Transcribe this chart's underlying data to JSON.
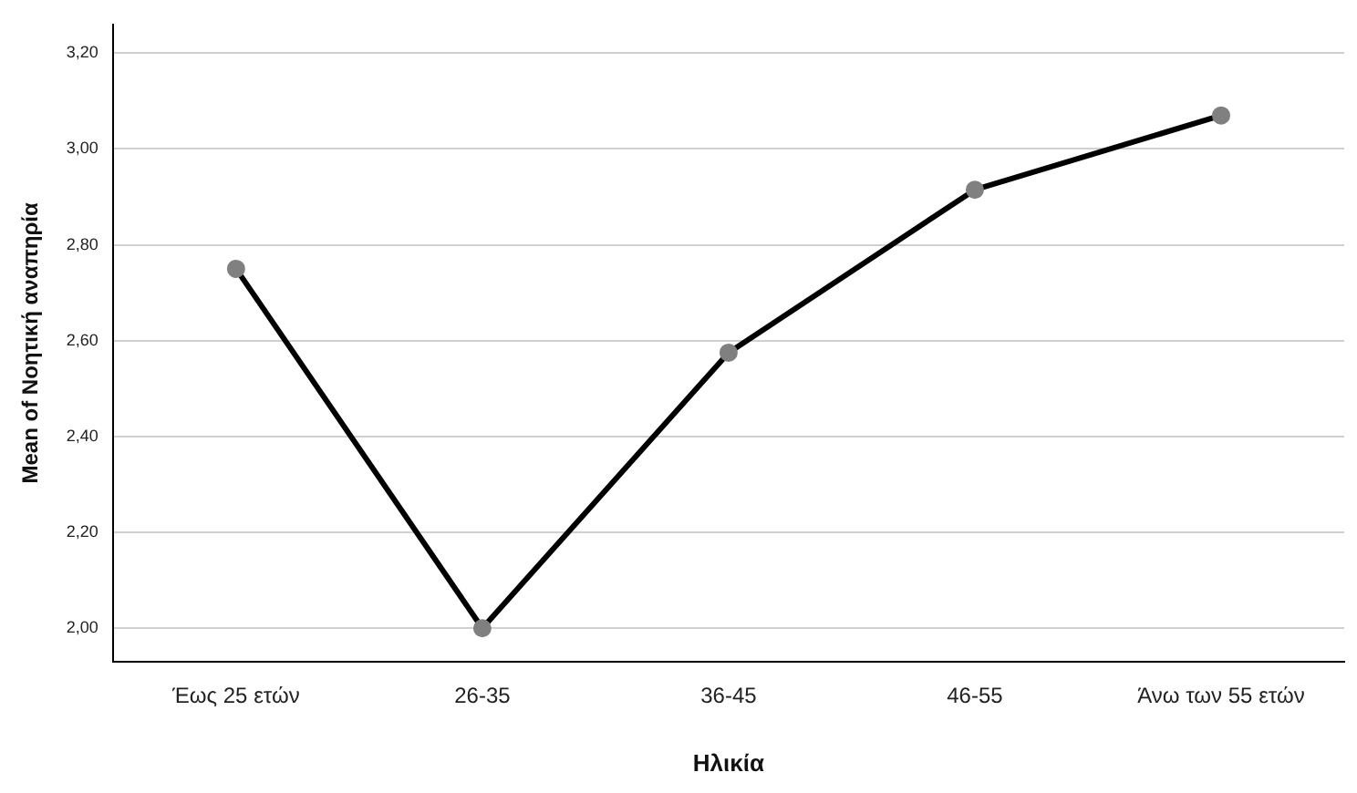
{
  "chart_data": {
    "type": "line",
    "xlabel": "Ηλικία",
    "ylabel": "Mean of Νοητική αναπηρία",
    "categories": [
      "Έως 25 ετών",
      "26-35",
      "36-45",
      "46-55",
      "Άνω των 55 ετών"
    ],
    "series": [
      {
        "color": "#000000",
        "values": [
          2.75,
          2.0,
          2.575,
          2.915,
          3.07
        ]
      }
    ],
    "ylim": [
      1.93,
      3.26
    ],
    "yticks": [
      {
        "value": 2.0,
        "label": "2,00"
      },
      {
        "value": 2.2,
        "label": "2,20"
      },
      {
        "value": 2.4,
        "label": "2,40"
      },
      {
        "value": 2.6,
        "label": "2,60"
      },
      {
        "value": 2.8,
        "label": "2,80"
      },
      {
        "value": 3.0,
        "label": "3,00"
      },
      {
        "value": 3.2,
        "label": "3,20"
      }
    ],
    "grid": "y",
    "legend": false,
    "marker": "circle",
    "line_style": "solid"
  }
}
